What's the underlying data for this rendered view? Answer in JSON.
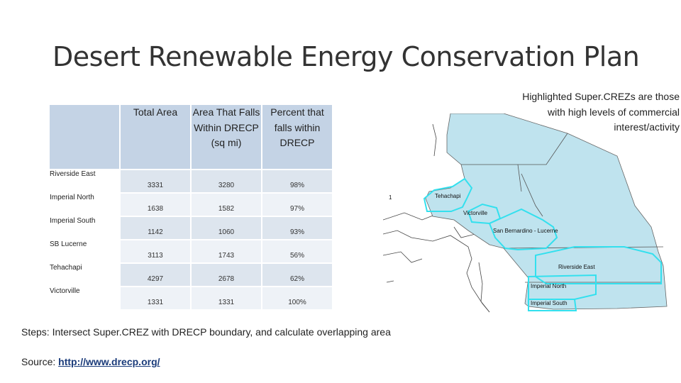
{
  "title": "Desert Renewable Energy Conservation Plan",
  "note": "Highlighted Super.CREZs are those with high levels of commercial interest/activity",
  "table": {
    "headers": [
      "Total Area",
      "Area That Falls Within DRECP (sq mi)",
      "Percent that falls within DRECP"
    ],
    "rows": [
      {
        "label": "Riverside East",
        "total": "3331",
        "within": "3280",
        "percent": "98%"
      },
      {
        "label": "Imperial North",
        "total": "1638",
        "within": "1582",
        "percent": "97%"
      },
      {
        "label": "Imperial South",
        "total": "1142",
        "within": "1060",
        "percent": "93%"
      },
      {
        "label": "SB Lucerne",
        "total": "3113",
        "within": "1743",
        "percent": "56%"
      },
      {
        "label": "Tehachapi",
        "total": "4297",
        "within": "2678",
        "percent": "62%"
      },
      {
        "label": "Victorville",
        "total": "1331",
        "within": "1331",
        "percent": "100%"
      }
    ]
  },
  "steps": "Steps: Intersect Super.CREZ with DRECP boundary, and calculate overlapping area",
  "source": {
    "prefix": "Source:",
    "link": "http://www.drecp.org/"
  },
  "map": {
    "labels": {
      "tehachapi": "Tehachapi",
      "victorville": "Victorville",
      "sb_lucerne": "San Bernardino - Lucerne",
      "riverside_east": "Riverside East",
      "imperial_north": "Imperial North",
      "imperial_south": "Imperial South",
      "marker": "1"
    },
    "colors": {
      "drecp_fill": "#bfe3ee",
      "highlight": "#33e0ee",
      "county_line": "#555555"
    }
  }
}
